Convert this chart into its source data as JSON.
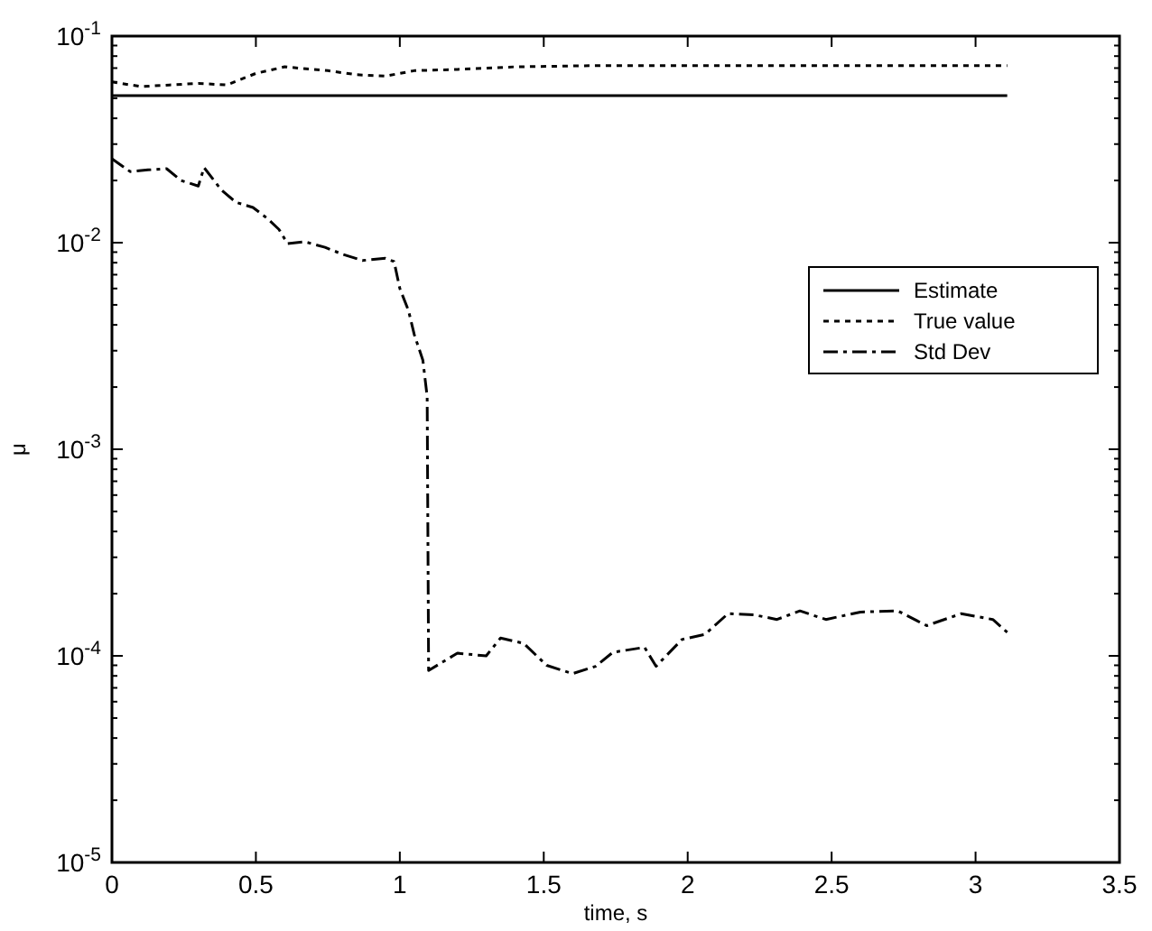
{
  "chart_data": {
    "type": "line",
    "xlabel": "time, s",
    "ylabel": "μ",
    "log": "y",
    "xlim": [
      0,
      3.5
    ],
    "ylim": [
      1e-05,
      0.1
    ],
    "xticks": [
      0,
      0.5,
      1,
      1.5,
      2,
      2.5,
      3,
      3.5
    ],
    "yticks": [
      {
        "value": 1e-05,
        "label": "10$^{-5}$"
      },
      {
        "value": 0.0001,
        "label": "10$^{-4}$"
      },
      {
        "value": 0.001,
        "label": "10$^{-3}$"
      },
      {
        "value": 0.01,
        "label": "10$^{-2}$"
      },
      {
        "value": 0.1,
        "label": "10$^{-1}$"
      }
    ],
    "grid": false,
    "legend": "right",
    "series": [
      {
        "name": "Estimate",
        "color": "#000000",
        "line_style": "solid",
        "x": [
          0,
          3.11
        ],
        "values": [
          0.0515,
          0.0515
        ]
      },
      {
        "name": "True value",
        "color": "#000000",
        "line_style": "dotted",
        "x": [
          0,
          0.1,
          0.2,
          0.3,
          0.4,
          0.5,
          0.6,
          0.75,
          0.85,
          0.95,
          1.05,
          1.2,
          1.4,
          1.7,
          2,
          2.5,
          3.11
        ],
        "values": [
          0.06,
          0.057,
          0.058,
          0.059,
          0.058,
          0.066,
          0.071,
          0.068,
          0.065,
          0.064,
          0.068,
          0.069,
          0.071,
          0.072,
          0.072,
          0.072,
          0.072
        ]
      },
      {
        "name": "Std Dev",
        "color": "#000000",
        "line_style": "dashdot",
        "x": [
          0,
          0.063,
          0.125,
          0.19,
          0.24,
          0.3,
          0.32,
          0.38,
          0.43,
          0.49,
          0.54,
          0.58,
          0.61,
          0.67,
          0.74,
          0.8,
          0.87,
          0.95,
          0.98,
          1.0,
          1.03,
          1.05,
          1.08,
          1.095,
          1.1,
          1.2,
          1.3,
          1.35,
          1.43,
          1.51,
          1.6,
          1.68,
          1.74,
          1.85,
          1.89,
          1.98,
          2.06,
          2.14,
          2.23,
          2.31,
          2.39,
          2.48,
          2.6,
          2.73,
          2.83,
          2.95,
          3.06,
          3.11
        ],
        "values": [
          0.0255,
          0.0221,
          0.0225,
          0.0228,
          0.02,
          0.0188,
          0.0231,
          0.018,
          0.0157,
          0.0148,
          0.0131,
          0.0116,
          0.0099,
          0.0101,
          0.0095,
          0.0088,
          0.0082,
          0.0084,
          0.0081,
          0.006,
          0.0047,
          0.0036,
          0.0027,
          0.0018,
          8.5e-05,
          0.000103,
          0.0001,
          0.000122,
          0.000115,
          9e-05,
          8.2e-05,
          8.9e-05,
          0.000104,
          0.00011,
          8.9e-05,
          0.00012,
          0.000127,
          0.00016,
          0.000158,
          0.00015,
          0.000165,
          0.00015,
          0.000163,
          0.000165,
          0.00014,
          0.00016,
          0.00015,
          0.00013
        ]
      }
    ]
  }
}
